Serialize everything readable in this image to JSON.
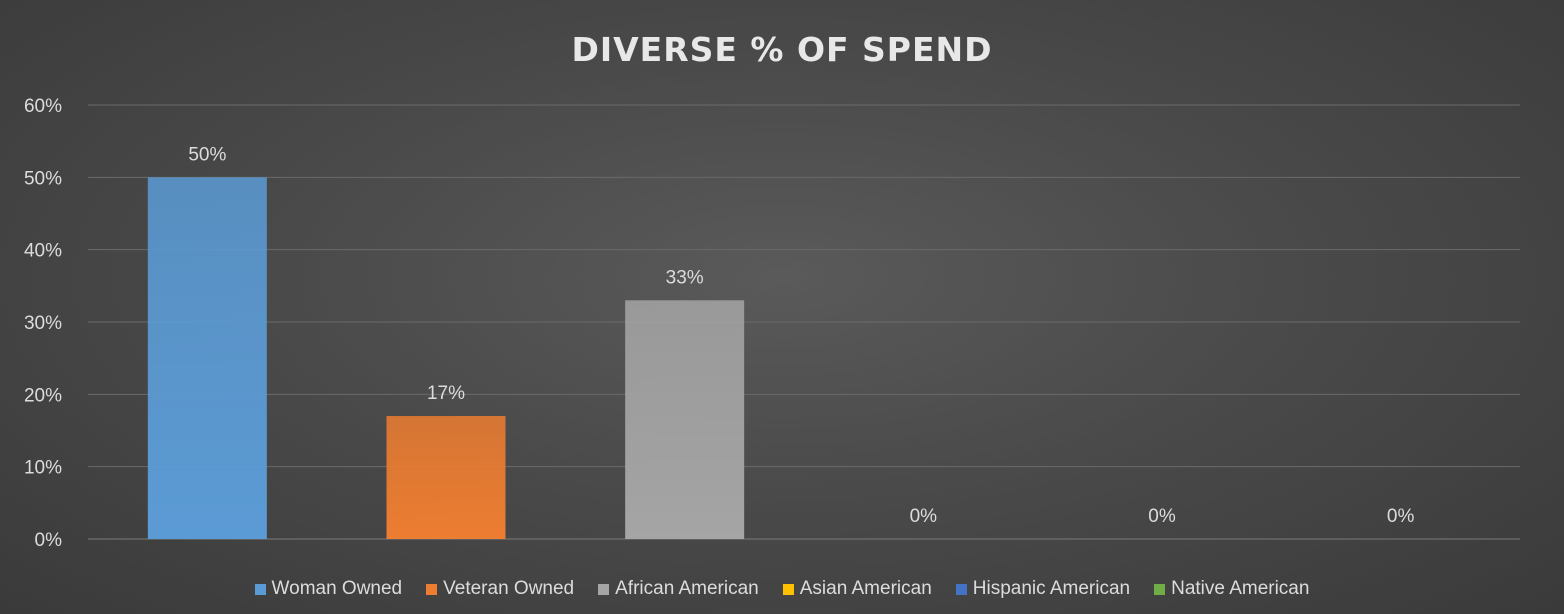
{
  "chart_data": {
    "type": "bar",
    "title": "DIVERSE % OF SPEND",
    "xlabel": "",
    "ylabel": "",
    "ylim": [
      0,
      60
    ],
    "yticks": [
      "0%",
      "10%",
      "20%",
      "30%",
      "40%",
      "50%",
      "60%"
    ],
    "grid": true,
    "legend_position": "bottom",
    "categories": [
      "Woman Owned",
      "Veteran Owned",
      "African American",
      "Asian American",
      "Hispanic American",
      "Native American"
    ],
    "values": [
      50,
      17,
      33,
      0,
      0,
      0
    ],
    "data_labels": [
      "50%",
      "17%",
      "33%",
      "0%",
      "0%",
      "0%"
    ],
    "colors": [
      "#5b9bd5",
      "#ed7d31",
      "#a5a5a5",
      "#ffc000",
      "#4472c4",
      "#70ad47"
    ]
  },
  "colors": {
    "background": "#4a4a4a",
    "gridline": "#6a6a6a",
    "text": "#dcdcdc"
  }
}
